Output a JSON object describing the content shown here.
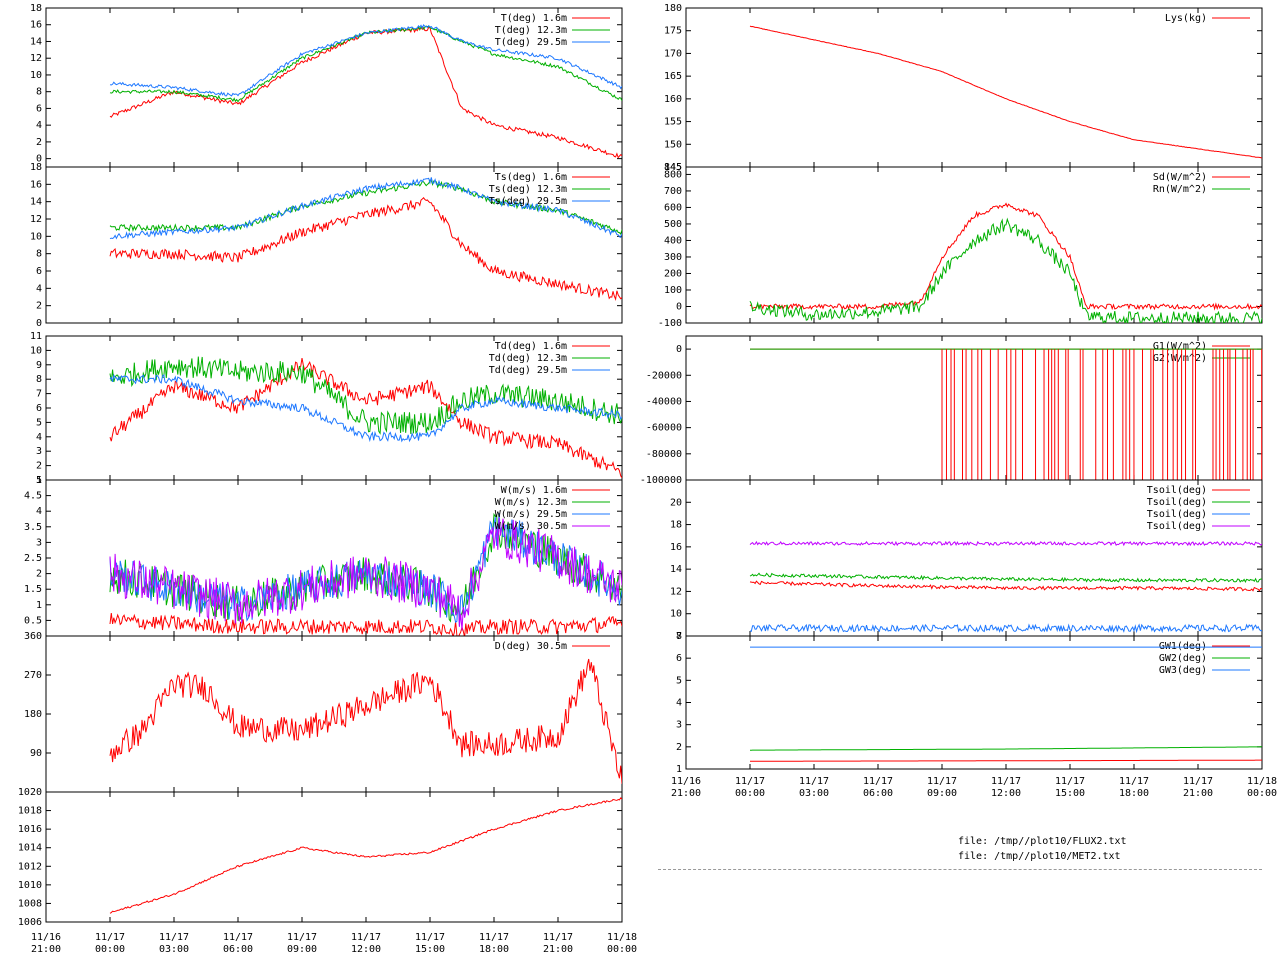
{
  "colors": {
    "red": "#ff0000",
    "green": "#00b000",
    "blue": "#1e78ff",
    "purple": "#c000ff"
  },
  "files": [
    "file: /tmp//plot10/FLUX2.txt",
    "file: /tmp//plot10/MET2.txt"
  ],
  "chart_data": [
    {
      "type": "line",
      "column": "left",
      "xlim": [
        "11/16 21:00",
        "11/18 00:00"
      ],
      "ylim": [
        -1,
        18
      ],
      "yticks": [
        0,
        2,
        4,
        6,
        8,
        10,
        12,
        14,
        16,
        18
      ],
      "x": [
        "00:00",
        "03:00",
        "06:00",
        "09:00",
        "12:00",
        "15:00",
        "16:30",
        "18:00",
        "21:00",
        "00:00"
      ],
      "series": [
        {
          "name": "T(deg)  1.6m",
          "color": "#ff0000",
          "values": [
            5,
            8,
            6.5,
            11.5,
            15,
            15.5,
            6,
            4,
            2.5,
            0.2
          ],
          "noise": 0.25
        },
        {
          "name": "T(deg) 12.3m",
          "color": "#00b000",
          "values": [
            8,
            8,
            7,
            12,
            15,
            15.7,
            14,
            12.5,
            11,
            7
          ],
          "noise": 0.2
        },
        {
          "name": "T(deg) 29.5m",
          "color": "#1e78ff",
          "values": [
            9,
            8.5,
            7.5,
            12.5,
            15,
            15.9,
            14,
            13,
            12,
            8.5
          ],
          "noise": 0.2
        }
      ]
    },
    {
      "type": "line",
      "column": "left",
      "xlim": [
        "11/16 21:00",
        "11/18 00:00"
      ],
      "ylim": [
        0,
        18
      ],
      "yticks": [
        0,
        2,
        4,
        6,
        8,
        10,
        12,
        14,
        16,
        18
      ],
      "x": [
        "00:00",
        "03:00",
        "06:00",
        "09:00",
        "12:00",
        "15:00",
        "16:30",
        "18:00",
        "21:00",
        "00:00"
      ],
      "series": [
        {
          "name": "Ts(deg)  1.6m",
          "color": "#ff0000",
          "values": [
            8,
            8,
            7.5,
            10.5,
            12.5,
            14,
            9,
            6,
            4.5,
            3
          ],
          "noise": 0.6
        },
        {
          "name": "Ts(deg) 12.3m",
          "color": "#00b000",
          "values": [
            11,
            11,
            11,
            13.5,
            15,
            16.2,
            15.5,
            14,
            13,
            10.5
          ],
          "noise": 0.35
        },
        {
          "name": "Ts(deg) 29.5m",
          "color": "#1e78ff",
          "values": [
            10,
            10.5,
            11,
            13.5,
            15.5,
            16.5,
            15.5,
            14,
            13,
            10
          ],
          "noise": 0.35
        }
      ]
    },
    {
      "type": "line",
      "column": "left",
      "xlim": [
        "11/16 21:00",
        "11/18 00:00"
      ],
      "ylim": [
        1,
        11
      ],
      "yticks": [
        1,
        2,
        3,
        4,
        5,
        6,
        7,
        8,
        9,
        10,
        11
      ],
      "x": [
        "00:00",
        "03:00",
        "06:00",
        "09:00",
        "12:00",
        "15:00",
        "16:30",
        "18:00",
        "21:00",
        "00:00"
      ],
      "series": [
        {
          "name": "Td(deg)  1.6m",
          "color": "#ff0000",
          "values": [
            4,
            7.5,
            6,
            9,
            6.5,
            7.5,
            5,
            4,
            3.5,
            1.5
          ],
          "noise": 0.5
        },
        {
          "name": "Td(deg) 12.3m",
          "color": "#00b000",
          "values": [
            8,
            9,
            8.5,
            8.5,
            5,
            5,
            6.5,
            7,
            6.5,
            5.5
          ],
          "noise": 0.8
        },
        {
          "name": "Td(deg) 29.5m",
          "color": "#1e78ff",
          "values": [
            8,
            8,
            6.5,
            6,
            4,
            4,
            6,
            6.5,
            6,
            5.5
          ],
          "noise": 0.3
        }
      ]
    },
    {
      "type": "line",
      "column": "left",
      "xlim": [
        "11/16 21:00",
        "11/18 00:00"
      ],
      "ylim": [
        0,
        5
      ],
      "yticks": [
        0.5,
        1,
        1.5,
        2,
        2.5,
        3,
        3.5,
        4,
        4.5,
        5
      ],
      "x": [
        "00:00",
        "03:00",
        "06:00",
        "09:00",
        "12:00",
        "15:00",
        "16:30",
        "18:00",
        "21:00",
        "00:00"
      ],
      "series": [
        {
          "name": "W(m/s)  1.6m",
          "color": "#ff0000",
          "values": [
            0.5,
            0.4,
            0.3,
            0.3,
            0.3,
            0.3,
            0.2,
            0.3,
            0.3,
            0.4
          ],
          "noise": 0.25
        },
        {
          "name": "W(m/s) 12.3m",
          "color": "#00b000",
          "values": [
            2,
            1.5,
            1,
            1.5,
            2,
            1.5,
            0.8,
            3.5,
            2.5,
            1.5
          ],
          "noise": 0.6
        },
        {
          "name": "W(m/s) 29.5m",
          "color": "#1e78ff",
          "values": [
            2,
            1.5,
            1,
            1.5,
            2,
            1.5,
            0.8,
            3.5,
            2.5,
            1.5
          ],
          "noise": 0.6
        },
        {
          "name": "W(m/s) 30.5m",
          "color": "#c000ff",
          "values": [
            2,
            1.5,
            1,
            1.5,
            2,
            1.5,
            0.8,
            3.3,
            2.5,
            1.5
          ],
          "noise": 0.7
        }
      ]
    },
    {
      "type": "line",
      "column": "left",
      "xlim": [
        "11/16 21:00",
        "11/18 00:00"
      ],
      "ylim": [
        0,
        360
      ],
      "yticks": [
        90,
        180,
        270,
        360
      ],
      "x": [
        "00:00",
        "01:30",
        "03:00",
        "04:30",
        "06:00",
        "09:00",
        "12:00",
        "15:00",
        "16:30",
        "18:00",
        "21:00",
        "22:30",
        "00:00"
      ],
      "series": [
        {
          "name": "D(deg)  30.5m",
          "color": "#ff0000",
          "values": [
            90,
            140,
            250,
            240,
            150,
            140,
            200,
            260,
            110,
            110,
            130,
            300,
            20
          ],
          "noise": 30
        }
      ]
    },
    {
      "type": "line",
      "column": "left",
      "xlim": [
        "11/16 21:00",
        "11/18 00:00"
      ],
      "ylim": [
        1006,
        1020
      ],
      "yticks": [
        1006,
        1008,
        1010,
        1012,
        1014,
        1016,
        1018,
        1020
      ],
      "x": [
        "00:00",
        "03:00",
        "06:00",
        "09:00",
        "12:00",
        "15:00",
        "18:00",
        "21:00",
        "00:00"
      ],
      "series": [
        {
          "name": "",
          "color": "#ff0000",
          "values": [
            1007,
            1009,
            1012,
            1014,
            1013,
            1013.5,
            1016,
            1018,
            1019.3
          ],
          "noise": 0.1
        }
      ]
    },
    {
      "type": "line",
      "column": "right",
      "xlim": [
        "11/16 21:00",
        "11/18 00:00"
      ],
      "ylim": [
        145,
        180
      ],
      "yticks": [
        145,
        150,
        155,
        160,
        165,
        170,
        175,
        180
      ],
      "x": [
        "00:00",
        "03:00",
        "06:00",
        "09:00",
        "12:00",
        "15:00",
        "18:00",
        "21:00",
        "00:00"
      ],
      "series": [
        {
          "name": "Lys(kg)",
          "color": "#ff0000",
          "values": [
            176,
            173,
            170,
            166,
            160,
            155,
            151,
            149,
            147
          ],
          "noise": 0.05
        }
      ]
    },
    {
      "type": "line",
      "column": "right",
      "xlim": [
        "11/16 21:00",
        "11/18 00:00"
      ],
      "ylim": [
        -100,
        845
      ],
      "yticks": [
        -100,
        0,
        100,
        200,
        300,
        400,
        500,
        600,
        700,
        800,
        845
      ],
      "x": [
        "00:00",
        "03:00",
        "06:00",
        "08:00",
        "09:00",
        "10:30",
        "12:00",
        "13:30",
        "15:00",
        "15:45",
        "18:00",
        "21:00",
        "00:00"
      ],
      "series": [
        {
          "name": "Sd(W/m^2)",
          "color": "#ff0000",
          "values": [
            0,
            0,
            0,
            30,
            300,
            550,
            620,
            550,
            300,
            0,
            0,
            0,
            0
          ],
          "noise": 15
        },
        {
          "name": "Rn(W/m^2)",
          "color": "#00b000",
          "values": [
            0,
            -50,
            -30,
            0,
            200,
            400,
            500,
            400,
            200,
            -60,
            -70,
            -70,
            -70
          ],
          "noise": 40
        }
      ]
    },
    {
      "type": "line",
      "column": "right",
      "xlim": [
        "11/16 21:00",
        "11/18 00:00"
      ],
      "ylim": [
        -100000,
        10000
      ],
      "yticks": [
        -100000,
        -80000,
        -60000,
        -40000,
        -20000,
        0
      ],
      "x": [
        "00:00",
        "09:00",
        "00:00"
      ],
      "series": [
        {
          "name": "G1(W/m^2)",
          "color": "#ff0000",
          "values": [
            0,
            0,
            0
          ]
        },
        {
          "name": "G2(W/m^2)",
          "color": "#00b000",
          "values": [
            0,
            0,
            0
          ]
        }
      ]
    },
    {
      "type": "line",
      "column": "right",
      "xlim": [
        "11/16 21:00",
        "11/18 00:00"
      ],
      "ylim": [
        8,
        22
      ],
      "yticks": [
        8,
        10,
        12,
        14,
        16,
        18,
        20
      ],
      "x": [
        "00:00",
        "06:00",
        "12:00",
        "18:00",
        "00:00"
      ],
      "series": [
        {
          "name": "Tsoil(deg)",
          "color": "#ff0000",
          "values": [
            12.8,
            12.5,
            12.3,
            12.3,
            12.2
          ],
          "noise": 0.15
        },
        {
          "name": "Tsoil(deg)",
          "color": "#00b000",
          "values": [
            13.5,
            13.3,
            13.1,
            13,
            13
          ],
          "noise": 0.15
        },
        {
          "name": "Tsoil(deg)",
          "color": "#1e78ff",
          "values": [
            8.7,
            8.7,
            8.7,
            8.7,
            8.7
          ],
          "noise": 0.3
        },
        {
          "name": "Tsoil(deg)",
          "color": "#c000ff",
          "values": [
            16.3,
            16.3,
            16.3,
            16.3,
            16.3
          ],
          "noise": 0.15
        }
      ]
    },
    {
      "type": "line",
      "column": "right",
      "xlim": [
        "11/16 21:00",
        "11/18 00:00"
      ],
      "ylim": [
        1,
        7
      ],
      "yticks": [
        1,
        2,
        3,
        4,
        5,
        6,
        7
      ],
      "x": [
        "00:00",
        "12:00",
        "00:00"
      ],
      "series": [
        {
          "name": "GW1(deg)",
          "color": "#ff0000",
          "values": [
            1.35,
            1.37,
            1.4
          ]
        },
        {
          "name": "GW2(deg)",
          "color": "#00b000",
          "values": [
            1.85,
            1.9,
            2
          ]
        },
        {
          "name": "GW3(deg)",
          "color": "#1e78ff",
          "values": [
            6.5,
            6.5,
            6.5
          ]
        }
      ]
    }
  ],
  "x_axis": {
    "ticks": [
      {
        "date": "11/16",
        "time": "21:00"
      },
      {
        "date": "11/17",
        "time": "00:00"
      },
      {
        "date": "11/17",
        "time": "03:00"
      },
      {
        "date": "11/17",
        "time": "06:00"
      },
      {
        "date": "11/17",
        "time": "09:00"
      },
      {
        "date": "11/17",
        "time": "12:00"
      },
      {
        "date": "11/17",
        "time": "15:00"
      },
      {
        "date": "11/17",
        "time": "18:00"
      },
      {
        "date": "11/17",
        "time": "21:00"
      },
      {
        "date": "11/18",
        "time": "00:00"
      }
    ]
  }
}
